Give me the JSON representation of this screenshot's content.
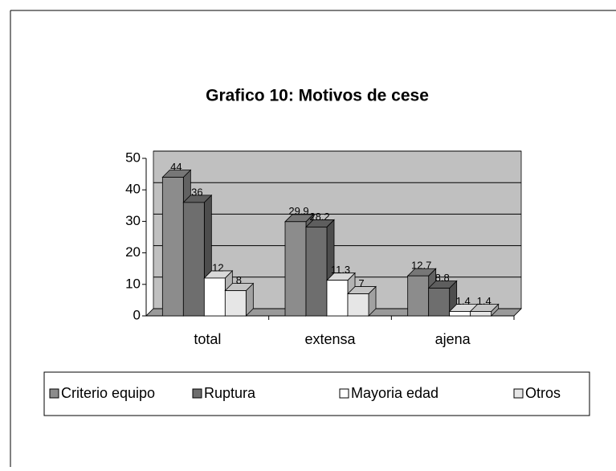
{
  "chart_data": {
    "type": "bar3d",
    "title": "Grafico 10: Motivos de cese",
    "categories": [
      "total",
      "extensa",
      "ajena"
    ],
    "series": [
      {
        "name": "Criterio equipo",
        "color": "#8c8c8c",
        "values": [
          44,
          29.9,
          12.7
        ]
      },
      {
        "name": "Ruptura",
        "color": "#6e6e6e",
        "values": [
          36,
          28.2,
          8.8
        ]
      },
      {
        "name": "Mayoria edad",
        "color": "#ffffff",
        "values": [
          12,
          11.3,
          1.4
        ]
      },
      {
        "name": "Otros",
        "color": "#e6e6e6",
        "values": [
          8,
          7,
          1.4
        ]
      }
    ],
    "ylim": [
      0,
      50
    ],
    "yticks": [
      0,
      10,
      20,
      30,
      40,
      50
    ],
    "grid": true,
    "legend": "bottom"
  }
}
